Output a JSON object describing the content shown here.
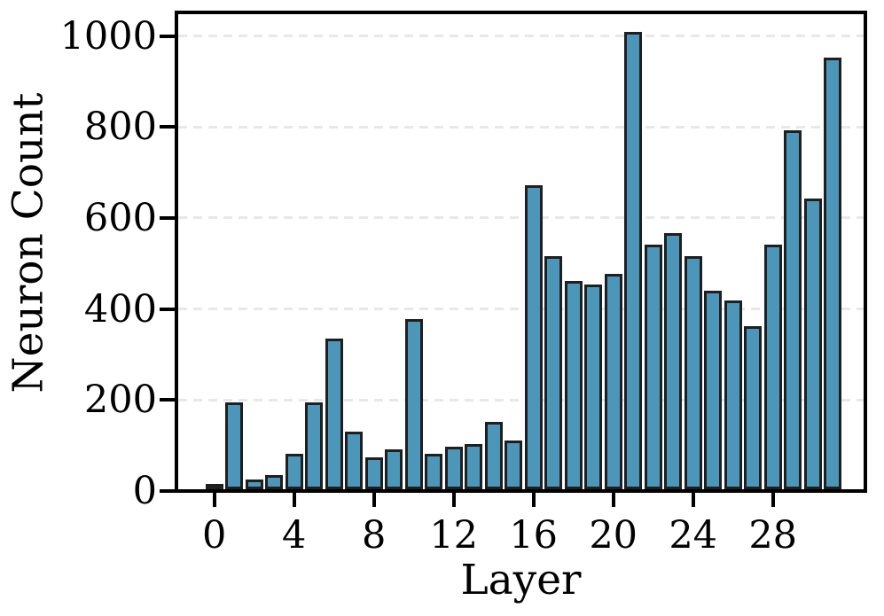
{
  "figure": {
    "background": "#ffffff"
  },
  "chart_data": {
    "type": "bar",
    "title": "",
    "xlabel": "Layer",
    "ylabel": "Neuron Count",
    "x": [
      0,
      1,
      2,
      3,
      4,
      5,
      6,
      7,
      8,
      9,
      10,
      11,
      12,
      13,
      14,
      15,
      16,
      17,
      18,
      19,
      20,
      21,
      22,
      23,
      24,
      25,
      26,
      27,
      28,
      29,
      30,
      31
    ],
    "values": [
      8,
      190,
      21,
      31,
      78,
      190,
      332,
      126,
      70,
      88,
      374,
      77,
      93,
      100,
      148,
      107,
      668,
      512,
      458,
      450,
      474,
      1005,
      538,
      562,
      512,
      437,
      414,
      358,
      538,
      789,
      638,
      948
    ],
    "xticks": [
      0,
      4,
      8,
      12,
      16,
      20,
      24,
      28
    ],
    "yticks": [
      0,
      200,
      400,
      600,
      800,
      1000
    ],
    "xlim": [
      -1.8,
      32.5
    ],
    "ylim": [
      0,
      1055
    ],
    "grid": "horizontal-dashed",
    "legend": null,
    "bar_color": "#4b96b9",
    "bar_edge_color": "#1f1f1f",
    "grid_color": "#e8e8e8",
    "axis_color": "#000000"
  }
}
